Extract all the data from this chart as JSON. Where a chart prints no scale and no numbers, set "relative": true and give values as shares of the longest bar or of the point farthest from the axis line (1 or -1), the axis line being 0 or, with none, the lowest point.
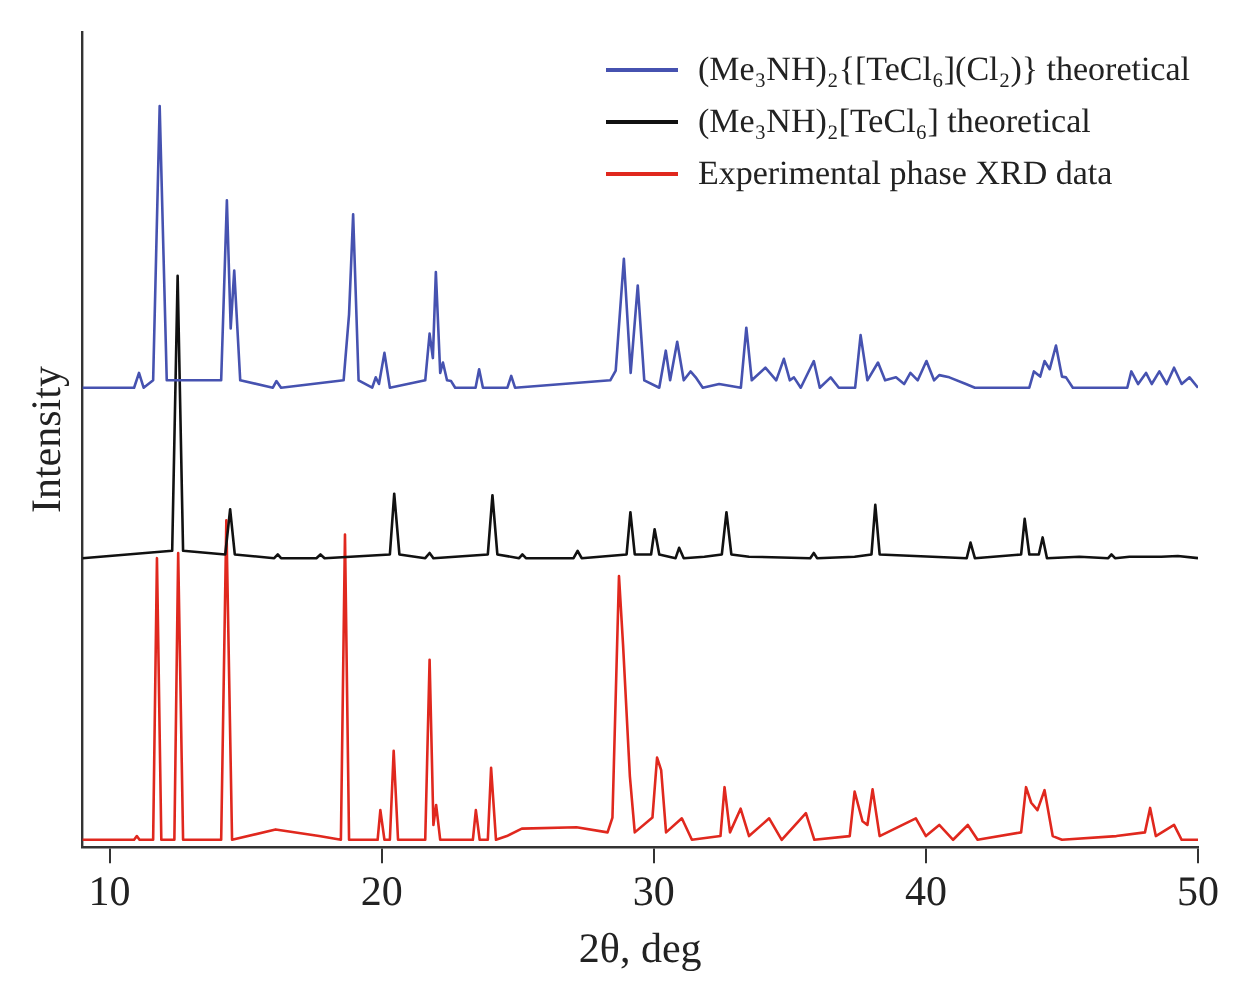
{
  "chart_data": {
    "type": "line",
    "xlabel": "2θ, deg",
    "ylabel": "Intensity",
    "relative": true,
    "xlim": [
      9,
      50
    ],
    "xticks": [
      10,
      20,
      30,
      40,
      50
    ],
    "legend": "top right",
    "marker": "none",
    "series": [
      {
        "name": "(Me₃NH)₂{[TeCl₆](Cl₂)} theoretical",
        "color": "#4652b0",
        "x": [
          9.0,
          10.9,
          11.08,
          11.25,
          11.6,
          11.84,
          12.1,
          14.1,
          14.31,
          14.45,
          14.58,
          14.8,
          16.0,
          16.13,
          16.3,
          18.6,
          18.8,
          18.95,
          19.15,
          19.65,
          19.78,
          19.9,
          20.1,
          20.3,
          21.6,
          21.76,
          21.88,
          21.99,
          22.15,
          22.25,
          22.4,
          22.55,
          22.7,
          23.45,
          23.58,
          23.72,
          24.62,
          24.76,
          24.9,
          28.4,
          28.6,
          28.9,
          29.15,
          29.41,
          29.65,
          30.2,
          30.44,
          30.6,
          30.86,
          31.1,
          31.35,
          31.54,
          31.8,
          32.4,
          33.2,
          33.4,
          33.6,
          34.1,
          34.5,
          34.78,
          35.0,
          35.15,
          35.4,
          35.88,
          36.1,
          36.5,
          36.8,
          37.4,
          37.6,
          37.85,
          38.24,
          38.5,
          38.9,
          39.2,
          39.43,
          39.7,
          40.02,
          40.3,
          40.49,
          40.86,
          41.47,
          41.8,
          43.8,
          43.97,
          44.2,
          44.36,
          44.55,
          44.78,
          45.0,
          45.15,
          45.4,
          47.4,
          47.55,
          47.8,
          48.09,
          48.3,
          48.58,
          48.85,
          49.12,
          49.4,
          49.69,
          50.0
        ],
        "values": [
          0.62,
          0.62,
          0.64,
          0.62,
          0.63,
          1.0,
          0.63,
          0.63,
          0.873,
          0.7,
          0.778,
          0.63,
          0.62,
          0.629,
          0.62,
          0.63,
          0.719,
          0.854,
          0.63,
          0.62,
          0.634,
          0.625,
          0.667,
          0.62,
          0.63,
          0.693,
          0.66,
          0.776,
          0.64,
          0.654,
          0.63,
          0.629,
          0.62,
          0.62,
          0.645,
          0.62,
          0.62,
          0.636,
          0.62,
          0.63,
          0.643,
          0.794,
          0.64,
          0.758,
          0.63,
          0.62,
          0.67,
          0.63,
          0.682,
          0.63,
          0.642,
          0.634,
          0.62,
          0.625,
          0.62,
          0.701,
          0.63,
          0.647,
          0.63,
          0.659,
          0.63,
          0.634,
          0.62,
          0.656,
          0.62,
          0.634,
          0.62,
          0.62,
          0.691,
          0.63,
          0.654,
          0.63,
          0.634,
          0.625,
          0.64,
          0.63,
          0.656,
          0.63,
          0.637,
          0.634,
          0.625,
          0.62,
          0.62,
          0.642,
          0.635,
          0.656,
          0.645,
          0.677,
          0.635,
          0.634,
          0.62,
          0.62,
          0.642,
          0.625,
          0.64,
          0.625,
          0.642,
          0.625,
          0.647,
          0.625,
          0.634,
          0.62
        ]
      },
      {
        "name": "(Me₃NH)₂[TeCl₆] theoretical",
        "color": "#111111",
        "x": [
          9.0,
          12.3,
          12.5,
          12.7,
          14.25,
          14.43,
          14.6,
          16.05,
          16.18,
          16.3,
          17.6,
          17.75,
          17.9,
          20.3,
          20.46,
          20.65,
          21.6,
          21.76,
          21.9,
          23.9,
          24.07,
          24.25,
          25.05,
          25.17,
          25.3,
          27.05,
          27.2,
          27.35,
          29.0,
          29.14,
          29.3,
          29.9,
          30.03,
          30.2,
          30.8,
          30.93,
          31.1,
          31.86,
          32.5,
          32.67,
          32.85,
          33.5,
          35.75,
          35.88,
          36.0,
          37.38,
          38.0,
          38.14,
          38.3,
          40.24,
          41.5,
          41.64,
          41.8,
          43.5,
          43.63,
          43.8,
          44.15,
          44.29,
          44.45,
          45.64,
          46.7,
          46.82,
          46.95,
          47.48,
          48.65,
          49.26,
          50.0
        ],
        "values": [
          0.39,
          0.4,
          0.771,
          0.4,
          0.395,
          0.456,
          0.395,
          0.39,
          0.395,
          0.39,
          0.39,
          0.395,
          0.39,
          0.395,
          0.477,
          0.395,
          0.39,
          0.397,
          0.39,
          0.395,
          0.475,
          0.395,
          0.39,
          0.395,
          0.39,
          0.39,
          0.4,
          0.39,
          0.395,
          0.452,
          0.395,
          0.395,
          0.429,
          0.395,
          0.39,
          0.404,
          0.39,
          0.392,
          0.395,
          0.452,
          0.395,
          0.392,
          0.39,
          0.397,
          0.39,
          0.392,
          0.395,
          0.462,
          0.395,
          0.392,
          0.39,
          0.411,
          0.39,
          0.395,
          0.443,
          0.395,
          0.395,
          0.418,
          0.39,
          0.392,
          0.39,
          0.395,
          0.39,
          0.392,
          0.392,
          0.393,
          0.39
        ]
      },
      {
        "name": "Experimental phase XRD data",
        "color": "#e0281e",
        "x": [
          9.0,
          10.9,
          11.0,
          11.1,
          11.6,
          11.74,
          11.9,
          12.38,
          12.52,
          12.7,
          14.1,
          14.29,
          14.5,
          16.1,
          17.7,
          18.5,
          18.65,
          18.8,
          19.85,
          19.95,
          20.1,
          20.3,
          20.44,
          20.6,
          21.6,
          21.76,
          21.9,
          22.0,
          22.15,
          23.35,
          23.46,
          23.6,
          23.9,
          24.02,
          24.2,
          24.6,
          25.15,
          27.16,
          28.3,
          28.48,
          28.72,
          28.87,
          29.12,
          29.3,
          29.95,
          30.12,
          30.27,
          30.45,
          31.03,
          31.4,
          32.45,
          32.6,
          32.8,
          33.19,
          33.5,
          34.24,
          34.7,
          35.59,
          35.9,
          37.2,
          37.38,
          37.67,
          37.85,
          38.04,
          38.3,
          39.63,
          40.0,
          40.49,
          41.0,
          41.54,
          41.9,
          43.5,
          43.68,
          43.87,
          44.1,
          44.36,
          44.66,
          45.0,
          47.0,
          48.05,
          48.24,
          48.45,
          49.12,
          49.4,
          50.0
        ],
        "values": [
          0.01,
          0.01,
          0.015,
          0.01,
          0.01,
          0.39,
          0.01,
          0.01,
          0.397,
          0.01,
          0.01,
          0.441,
          0.01,
          0.024,
          0.015,
          0.01,
          0.422,
          0.01,
          0.01,
          0.05,
          0.01,
          0.01,
          0.13,
          0.01,
          0.01,
          0.253,
          0.03,
          0.057,
          0.01,
          0.01,
          0.05,
          0.01,
          0.01,
          0.107,
          0.01,
          0.015,
          0.025,
          0.027,
          0.02,
          0.04,
          0.366,
          0.273,
          0.096,
          0.02,
          0.04,
          0.121,
          0.104,
          0.02,
          0.039,
          0.01,
          0.015,
          0.081,
          0.02,
          0.052,
          0.015,
          0.039,
          0.01,
          0.046,
          0.01,
          0.015,
          0.075,
          0.035,
          0.03,
          0.078,
          0.015,
          0.039,
          0.015,
          0.03,
          0.01,
          0.03,
          0.01,
          0.02,
          0.081,
          0.06,
          0.05,
          0.077,
          0.015,
          0.01,
          0.015,
          0.02,
          0.053,
          0.015,
          0.03,
          0.01,
          0.01
        ]
      }
    ]
  }
}
